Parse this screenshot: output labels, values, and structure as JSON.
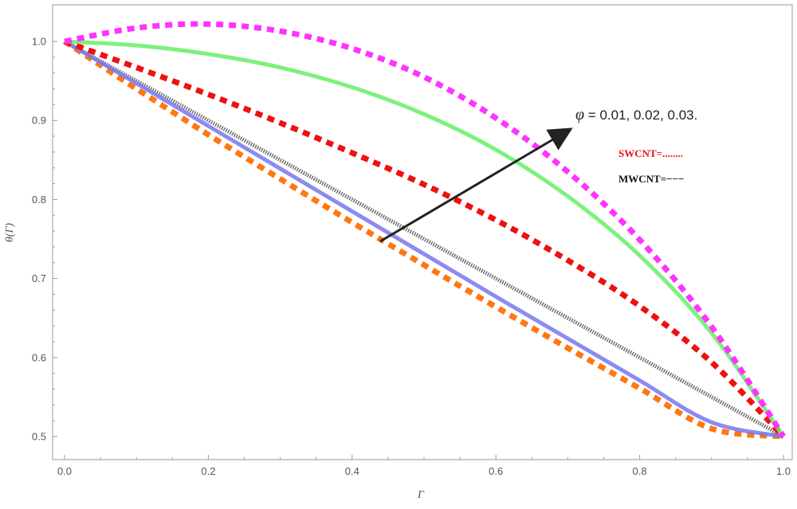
{
  "chart_data": {
    "type": "line",
    "title": "",
    "xlabel": "Γ",
    "ylabel": "θ(Γ)",
    "xlim": [
      0,
      1
    ],
    "ylim": [
      0.49,
      1.05
    ],
    "xticks": [
      "0.0",
      "0.2",
      "0.4",
      "0.6",
      "0.8",
      "1.0"
    ],
    "xtick_values": [
      0,
      0.2,
      0.4,
      0.6,
      0.8,
      1.0
    ],
    "yticks": [
      "0.5",
      "0.6",
      "0.7",
      "0.8",
      "0.9",
      "1.0"
    ],
    "ytick_values": [
      0.5,
      0.6,
      0.7,
      0.8,
      0.9,
      1.0
    ],
    "grid": false,
    "x": [
      0,
      0.1,
      0.2,
      0.3,
      0.4,
      0.5,
      0.6,
      0.7,
      0.8,
      0.9,
      1.0
    ],
    "series": [
      {
        "color": "#ff33ff",
        "dash": "dotted",
        "values": [
          1.0,
          1.017,
          1.022,
          1.013,
          0.991,
          0.955,
          0.903,
          0.835,
          0.749,
          0.639,
          0.5
        ]
      },
      {
        "color": "#66ee66",
        "dash": "solid",
        "values": [
          1.0,
          0.995,
          0.984,
          0.967,
          0.942,
          0.908,
          0.863,
          0.804,
          0.729,
          0.631,
          0.5
        ]
      },
      {
        "color": "#ee1111",
        "dash": "dotted",
        "values": [
          1.0,
          0.967,
          0.933,
          0.897,
          0.859,
          0.819,
          0.774,
          0.723,
          0.665,
          0.594,
          0.5
        ]
      },
      {
        "color": "#7777ee",
        "dash": "solid",
        "values": [
          1.0,
          0.947,
          0.893,
          0.839,
          0.785,
          0.731,
          0.677,
          0.624,
          0.571,
          0.518,
          0.5
        ]
      },
      {
        "color": "#ff7711",
        "dash": "dotted",
        "values": [
          1.0,
          0.94,
          0.882,
          0.826,
          0.771,
          0.717,
          0.664,
          0.612,
          0.561,
          0.51,
          0.5
        ]
      },
      {
        "color": "#555555",
        "dash": "solid",
        "values": [
          1.0,
          0.95,
          0.9,
          0.85,
          0.8,
          0.75,
          0.7,
          0.65,
          0.6,
          0.55,
          0.5
        ]
      }
    ],
    "annotations": [
      {
        "symbol": "φ",
        "text": " = 0.01, 0.02, 0.03."
      }
    ],
    "legend": [
      {
        "text": "SWCNT=........",
        "color": "#ee1111"
      },
      {
        "text": "MWCNT=−−−",
        "color": "#111111"
      }
    ]
  }
}
